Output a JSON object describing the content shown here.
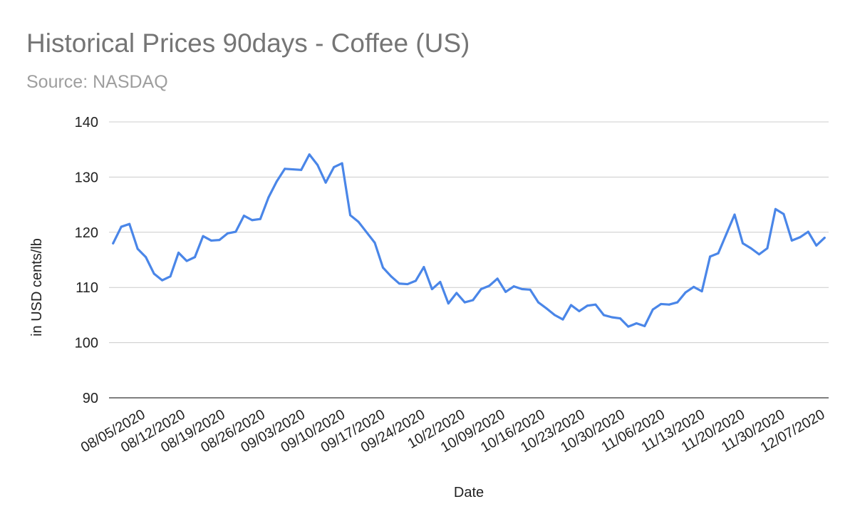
{
  "chart_data": {
    "type": "line",
    "title": "Historical Prices 90days - Coffee (US)",
    "subtitle": "Source: NASDAQ",
    "xlabel": "Date",
    "ylabel": "in USD cents/lb",
    "ylim": [
      90,
      140
    ],
    "yticks": [
      90,
      100,
      110,
      120,
      130,
      140
    ],
    "grid": true,
    "line_color": "#4a86e8",
    "x_tick_labels": [
      "08/05/2020",
      "08/12/2020",
      "08/19/2020",
      "08/26/2020",
      "09/03/2020",
      "09/10/2020",
      "09/17/2020",
      "09/24/2020",
      "10/2/2020",
      "10/09/2020",
      "10/16/2020",
      "10/23/2020",
      "10/30/2020",
      "11/06/2020",
      "11/13/2020",
      "11/20/2020",
      "11/30/2020",
      "12/07/2020"
    ],
    "series": [
      {
        "values": [
          118.0,
          121.0,
          121.5,
          117.0,
          115.5,
          112.5,
          111.3,
          112.0,
          116.3,
          114.8,
          115.5,
          119.3,
          118.5,
          118.6,
          119.8,
          120.1,
          123.0,
          122.2,
          122.4,
          126.3,
          129.2,
          131.5,
          131.4,
          131.3,
          134.1,
          132.2,
          129.0,
          131.8,
          132.5,
          123.1,
          121.9,
          120.0,
          118.1,
          113.6,
          112.0,
          110.7,
          110.6,
          111.2,
          113.7,
          109.7,
          111.0,
          107.1,
          109.0,
          107.3,
          107.7,
          109.7,
          110.3,
          111.6,
          109.2,
          110.2,
          109.7,
          109.6,
          107.3,
          106.2,
          105.0,
          104.2,
          106.8,
          105.7,
          106.7,
          106.9,
          105.0,
          104.6,
          104.4,
          102.9,
          103.5,
          103.0,
          106.0,
          107.0,
          106.9,
          107.3,
          109.1,
          110.1,
          109.3,
          115.6,
          116.2,
          119.7,
          123.2,
          118.0,
          117.1,
          116.0,
          117.1,
          124.2,
          123.3,
          118.5,
          119.1,
          120.1,
          117.6,
          119.0
        ]
      }
    ]
  }
}
